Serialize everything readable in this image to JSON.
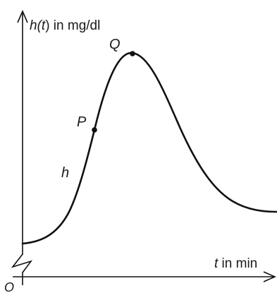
{
  "diagram": {
    "y_axis_label": {
      "pre": "h(",
      "var": "t",
      "post": ") in mg/dl"
    },
    "x_axis_label": {
      "var": "t",
      "post": " in min"
    },
    "origin_label": "O",
    "function_label": "h",
    "points": [
      {
        "name": "P"
      },
      {
        "name": "Q"
      }
    ]
  }
}
